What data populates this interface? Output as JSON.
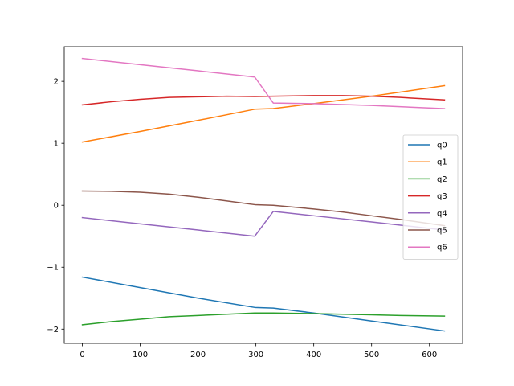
{
  "chart_data": {
    "type": "line",
    "title": "",
    "xlabel": "",
    "ylabel": "",
    "xlim": [
      -31.3,
      657.3
    ],
    "ylim": [
      -2.23,
      2.56
    ],
    "xticks": [
      0,
      100,
      200,
      300,
      400,
      500,
      600
    ],
    "yticks": [
      -2,
      -1,
      0,
      1,
      2
    ],
    "xtick_labels": [
      "0",
      "100",
      "200",
      "300",
      "400",
      "500",
      "600"
    ],
    "ytick_labels": [
      "−2",
      "−1",
      "0",
      "1",
      "2"
    ],
    "grid": false,
    "legend": {
      "placement": "center-right"
    },
    "series": [
      {
        "name": "q0",
        "color": "#1f77b4",
        "x": [
          0,
          100,
          200,
          298,
          330,
          400,
          500,
          626
        ],
        "y": [
          -1.16,
          -1.33,
          -1.5,
          -1.65,
          -1.66,
          -1.74,
          -1.87,
          -2.03
        ]
      },
      {
        "name": "q1",
        "color": "#ff7f0e",
        "x": [
          0,
          100,
          200,
          298,
          330,
          400,
          500,
          626
        ],
        "y": [
          1.02,
          1.19,
          1.37,
          1.55,
          1.56,
          1.64,
          1.76,
          1.93
        ]
      },
      {
        "name": "q2",
        "color": "#2ca02c",
        "x": [
          0,
          50,
          100,
          150,
          200,
          250,
          298,
          330,
          400,
          450,
          500,
          550,
          626
        ],
        "y": [
          -1.93,
          -1.88,
          -1.84,
          -1.8,
          -1.78,
          -1.76,
          -1.74,
          -1.74,
          -1.75,
          -1.76,
          -1.77,
          -1.78,
          -1.79
        ]
      },
      {
        "name": "q3",
        "color": "#d62728",
        "x": [
          0,
          50,
          100,
          150,
          200,
          250,
          298,
          330,
          400,
          450,
          500,
          550,
          626
        ],
        "y": [
          1.62,
          1.67,
          1.71,
          1.74,
          1.75,
          1.76,
          1.755,
          1.76,
          1.77,
          1.77,
          1.76,
          1.74,
          1.7
        ]
      },
      {
        "name": "q4",
        "color": "#9467bd",
        "x": [
          0,
          100,
          200,
          298,
          330,
          400,
          500,
          626
        ],
        "y": [
          -0.2,
          -0.3,
          -0.4,
          -0.5,
          -0.1,
          -0.17,
          -0.27,
          -0.4
        ]
      },
      {
        "name": "q5",
        "color": "#8c564b",
        "x": [
          0,
          50,
          100,
          150,
          200,
          250,
          298,
          330,
          400,
          450,
          500,
          550,
          626
        ],
        "y": [
          0.23,
          0.225,
          0.21,
          0.18,
          0.13,
          0.07,
          0.01,
          0.0,
          -0.06,
          -0.11,
          -0.17,
          -0.23,
          -0.33
        ]
      },
      {
        "name": "q6",
        "color": "#e377c2",
        "x": [
          0,
          100,
          200,
          298,
          330,
          400,
          500,
          626
        ],
        "y": [
          2.37,
          2.27,
          2.17,
          2.07,
          1.65,
          1.64,
          1.61,
          1.56
        ]
      }
    ]
  }
}
